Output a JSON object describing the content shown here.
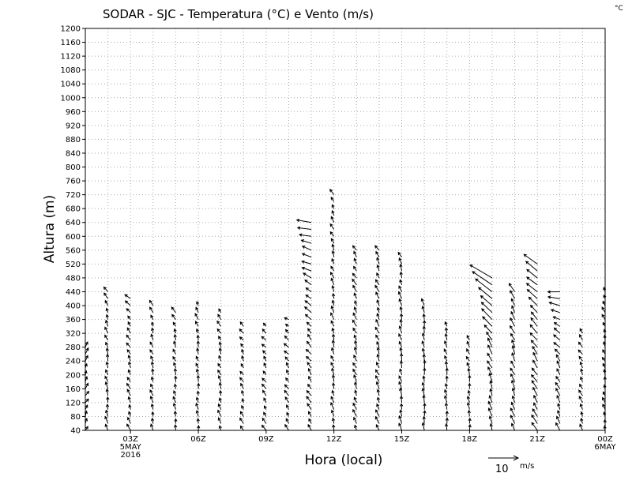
{
  "chart_data": {
    "type": "vector",
    "title": "SODAR - SJC - Temperatura (°C) e Vento (m/s)",
    "unit_label": "°C",
    "xlabel": "Hora (local)",
    "ylabel": "Altura (m)",
    "ylim": [
      40,
      1200
    ],
    "yticks": [
      40,
      80,
      120,
      160,
      200,
      240,
      280,
      320,
      360,
      400,
      440,
      480,
      520,
      560,
      600,
      640,
      680,
      720,
      760,
      800,
      840,
      880,
      920,
      960,
      1000,
      1040,
      1080,
      1120,
      1160,
      1200
    ],
    "xlim_hours": [
      1,
      24
    ],
    "xticks": [
      {
        "hour": 3,
        "label": "03Z",
        "sub1": "5MAY",
        "sub2": "2016"
      },
      {
        "hour": 6,
        "label": "06Z"
      },
      {
        "hour": 9,
        "label": "09Z"
      },
      {
        "hour": 12,
        "label": "12Z"
      },
      {
        "hour": 15,
        "label": "15Z"
      },
      {
        "hour": 18,
        "label": "18Z"
      },
      {
        "hour": 21,
        "label": "21Z"
      },
      {
        "hour": 24,
        "label": "00Z",
        "sub1": "6MAY"
      }
    ],
    "reference_vector": {
      "value": "10",
      "unit": "m/s"
    },
    "level_step_m": 20,
    "columns": [
      {
        "hour": 1,
        "top": 280,
        "u": 0.8,
        "v": 1.5,
        "ut": 0.5,
        "vt": 1.8
      },
      {
        "hour": 2,
        "top": 440,
        "u": -0.5,
        "v": 2.0,
        "ut": -1.0,
        "vt": 1.5
      },
      {
        "hour": 3,
        "top": 420,
        "u": -0.8,
        "v": 1.8,
        "ut": -1.5,
        "vt": 1.2
      },
      {
        "hour": 4,
        "top": 400,
        "u": -0.6,
        "v": 1.8,
        "ut": -0.8,
        "vt": 1.5
      },
      {
        "hour": 5,
        "top": 380,
        "u": -0.4,
        "v": 1.8,
        "ut": -1.0,
        "vt": 1.5
      },
      {
        "hour": 6,
        "top": 400,
        "u": -0.3,
        "v": 1.8,
        "ut": -0.8,
        "vt": 1.6
      },
      {
        "hour": 7,
        "top": 380,
        "u": -0.6,
        "v": 1.8,
        "ut": -1.0,
        "vt": 1.4
      },
      {
        "hour": 8,
        "top": 340,
        "u": -0.8,
        "v": 1.5,
        "ut": -1.0,
        "vt": 1.2
      },
      {
        "hour": 9,
        "top": 340,
        "u": -1.0,
        "v": 1.5,
        "ut": -1.2,
        "vt": 1.0
      },
      {
        "hour": 10,
        "top": 360,
        "u": -1.0,
        "v": 1.6,
        "ut": -1.5,
        "vt": 0.8
      },
      {
        "hour": 11,
        "top": 640,
        "u": -1.2,
        "v": 1.8,
        "ut": -4.5,
        "vt": 0.6
      },
      {
        "hour": 12,
        "top": 720,
        "u": -0.6,
        "v": 2.0,
        "ut": -1.0,
        "vt": 1.5
      },
      {
        "hour": 13,
        "top": 560,
        "u": -0.8,
        "v": 2.0,
        "ut": -1.2,
        "vt": 1.6
      },
      {
        "hour": 14,
        "top": 560,
        "u": -0.8,
        "v": 2.0,
        "ut": -1.0,
        "vt": 1.8
      },
      {
        "hour": 15,
        "top": 550,
        "u": -0.5,
        "v": 2.2,
        "ut": -0.8,
        "vt": 1.8
      },
      {
        "hour": 16,
        "top": 400,
        "u": -0.2,
        "v": 2.2,
        "ut": -0.5,
        "vt": 2.0
      },
      {
        "hour": 17,
        "top": 340,
        "u": -0.3,
        "v": 2.0,
        "ut": -0.8,
        "vt": 1.8
      },
      {
        "hour": 18,
        "top": 300,
        "u": -0.2,
        "v": 2.0,
        "ut": -1.2,
        "vt": 1.5
      },
      {
        "hour": 19,
        "top": 480,
        "u": -0.8,
        "v": 2.5,
        "ut": -7.0,
        "vt": 4.5
      },
      {
        "hour": 20,
        "top": 440,
        "u": -1.0,
        "v": 2.5,
        "ut": -1.5,
        "vt": 2.5
      },
      {
        "hour": 21,
        "top": 520,
        "u": -1.5,
        "v": 2.5,
        "ut": -4.5,
        "vt": 3.0
      },
      {
        "hour": 22,
        "top": 440,
        "u": -1.0,
        "v": 2.2,
        "ut": -4.0,
        "vt": 0.2
      },
      {
        "hour": 23,
        "top": 320,
        "u": -0.8,
        "v": 1.8,
        "ut": -1.2,
        "vt": 1.5
      },
      {
        "hour": 24,
        "top": 440,
        "u": -0.5,
        "v": 1.5,
        "ut": -0.8,
        "vt": 1.5
      }
    ]
  }
}
